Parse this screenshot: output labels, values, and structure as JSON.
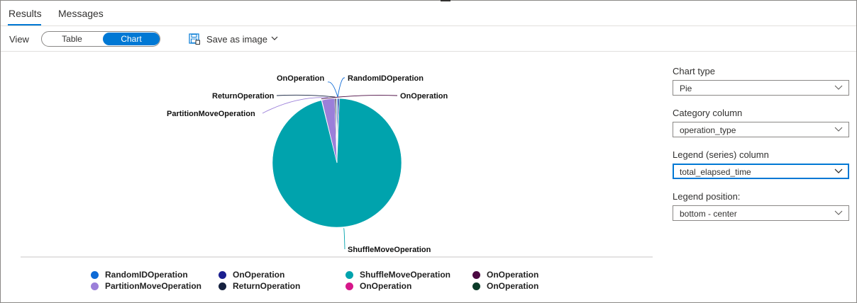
{
  "tabs": {
    "results": "Results",
    "messages": "Messages"
  },
  "toolbar": {
    "view_label": "View",
    "toggle_table": "Table",
    "toggle_chart": "Chart",
    "save_as_image": "Save as image"
  },
  "chart_data": {
    "type": "pie",
    "title": "",
    "slices": [
      {
        "label": "RandomIDOperation",
        "value": 0.3,
        "color": "#0e6ad6"
      },
      {
        "label": "OnOperation",
        "value": 0.3,
        "color": "#1b1f8f"
      },
      {
        "label": "ShuffleMoveOperation",
        "value": 95.5,
        "color": "#00a3ad"
      },
      {
        "label": "OnOperation",
        "value": 0.1,
        "color": "#4b0a42"
      },
      {
        "label": "PartitionMoveOperation",
        "value": 3.2,
        "color": "#9b7fd9"
      },
      {
        "label": "ReturnOperation",
        "value": 0.3,
        "color": "#15213f"
      },
      {
        "label": "OnOperation",
        "value": 0.15,
        "color": "#d6178a"
      },
      {
        "label": "OnOperation",
        "value": 0.15,
        "color": "#0b3b28"
      }
    ],
    "slice_labels": [
      "OnOperation",
      "RandomIDOperation",
      "ReturnOperation",
      "OnOperation",
      "PartitionMoveOperation",
      "ShuffleMoveOperation"
    ],
    "legend_position": "bottom - center"
  },
  "legend": [
    {
      "label": "RandomIDOperation",
      "color": "#0e6ad6"
    },
    {
      "label": "OnOperation",
      "color": "#1b1f8f"
    },
    {
      "label": "ShuffleMoveOperation",
      "color": "#00a3ad"
    },
    {
      "label": "OnOperation",
      "color": "#4b0a42"
    },
    {
      "label": "PartitionMoveOperation",
      "color": "#9b7fd9"
    },
    {
      "label": "ReturnOperation",
      "color": "#15213f"
    },
    {
      "label": "OnOperation",
      "color": "#d6178a"
    },
    {
      "label": "OnOperation",
      "color": "#0b3b28"
    }
  ],
  "settings": {
    "chart_type": {
      "label": "Chart type",
      "value": "Pie"
    },
    "category_column": {
      "label": "Category column",
      "value": "operation_type"
    },
    "legend_column": {
      "label": "Legend (series) column",
      "value": "total_elapsed_time"
    },
    "legend_position": {
      "label": "Legend position:",
      "value": "bottom - center"
    }
  },
  "colors": {
    "accent": "#0078d4"
  }
}
